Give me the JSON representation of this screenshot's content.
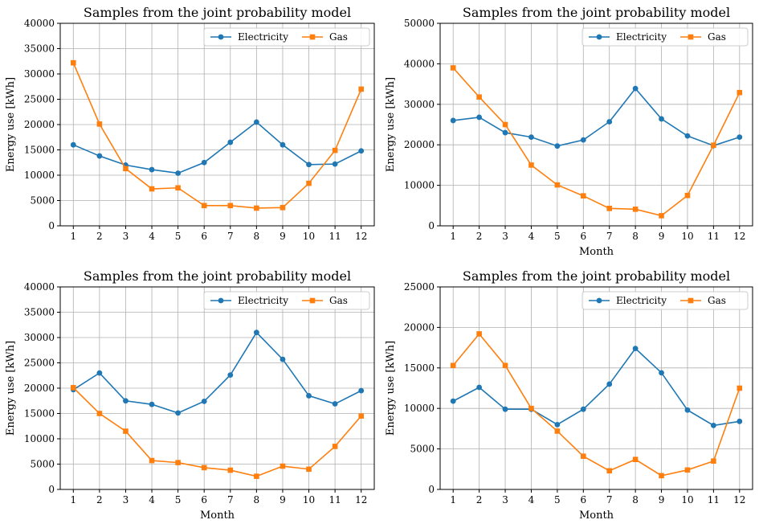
{
  "chart_data": [
    {
      "type": "line",
      "title": "Samples from the joint probability model",
      "xlabel": "",
      "ylabel": "Energy use [kWh]",
      "x": [
        1,
        2,
        3,
        4,
        5,
        6,
        7,
        8,
        9,
        10,
        11,
        12
      ],
      "ylim": [
        0,
        40000
      ],
      "yticks": [
        0,
        5000,
        10000,
        15000,
        20000,
        25000,
        30000,
        35000,
        40000
      ],
      "grid": true,
      "legend_position": "top-right",
      "series": [
        {
          "name": "Electricity",
          "color": "#1f77b4",
          "marker": "circle",
          "values": [
            16000,
            13800,
            12000,
            11100,
            10400,
            12500,
            16500,
            20500,
            16000,
            12100,
            12200,
            14800
          ]
        },
        {
          "name": "Gas",
          "color": "#ff7f0e",
          "marker": "square",
          "values": [
            32200,
            20100,
            11300,
            7300,
            7500,
            4000,
            4000,
            3500,
            3600,
            8400,
            14900,
            27000
          ]
        }
      ]
    },
    {
      "type": "line",
      "title": "Samples from the joint probability model",
      "xlabel": "Month",
      "ylabel": "Energy use [kWh]",
      "x": [
        1,
        2,
        3,
        4,
        5,
        6,
        7,
        8,
        9,
        10,
        11,
        12
      ],
      "ylim": [
        0,
        50000
      ],
      "yticks": [
        0,
        10000,
        20000,
        30000,
        40000,
        50000
      ],
      "grid": true,
      "legend_position": "top-right",
      "series": [
        {
          "name": "Electricity",
          "color": "#1f77b4",
          "marker": "circle",
          "values": [
            26000,
            26800,
            23000,
            21900,
            19700,
            21200,
            25700,
            33900,
            26400,
            22200,
            19800,
            21900
          ]
        },
        {
          "name": "Gas",
          "color": "#ff7f0e",
          "marker": "square",
          "values": [
            39000,
            31800,
            25000,
            15000,
            10100,
            7400,
            4300,
            4100,
            2500,
            7500,
            19900,
            32900
          ]
        }
      ]
    },
    {
      "type": "line",
      "title": "Samples from the joint probability model",
      "xlabel": "Month",
      "ylabel": "Energy use [kWh]",
      "x": [
        1,
        2,
        3,
        4,
        5,
        6,
        7,
        8,
        9,
        10,
        11,
        12
      ],
      "ylim": [
        0,
        40000
      ],
      "yticks": [
        0,
        5000,
        10000,
        15000,
        20000,
        25000,
        30000,
        35000,
        40000
      ],
      "grid": true,
      "legend_position": "top-right",
      "series": [
        {
          "name": "Electricity",
          "color": "#1f77b4",
          "marker": "circle",
          "values": [
            19700,
            23000,
            17500,
            16800,
            15100,
            17400,
            22600,
            31000,
            25700,
            18500,
            16900,
            19500
          ]
        },
        {
          "name": "Gas",
          "color": "#ff7f0e",
          "marker": "square",
          "values": [
            20100,
            15000,
            11500,
            5700,
            5300,
            4300,
            3800,
            2600,
            4600,
            4000,
            8500,
            14500
          ]
        }
      ]
    },
    {
      "type": "line",
      "title": "Samples from the joint probability model",
      "xlabel": "Month",
      "ylabel": "Energy use [kWh]",
      "x": [
        1,
        2,
        3,
        4,
        5,
        6,
        7,
        8,
        9,
        10,
        11,
        12
      ],
      "ylim": [
        0,
        25000
      ],
      "yticks": [
        0,
        5000,
        10000,
        15000,
        20000,
        25000
      ],
      "grid": true,
      "legend_position": "top-right",
      "series": [
        {
          "name": "Electricity",
          "color": "#1f77b4",
          "marker": "circle",
          "values": [
            10900,
            12600,
            9900,
            9900,
            8000,
            9900,
            13000,
            17400,
            14400,
            9800,
            7900,
            8400
          ]
        },
        {
          "name": "Gas",
          "color": "#ff7f0e",
          "marker": "square",
          "values": [
            15300,
            19200,
            15300,
            10000,
            7200,
            4100,
            2300,
            3700,
            1700,
            2400,
            3500,
            12500
          ]
        }
      ]
    }
  ]
}
